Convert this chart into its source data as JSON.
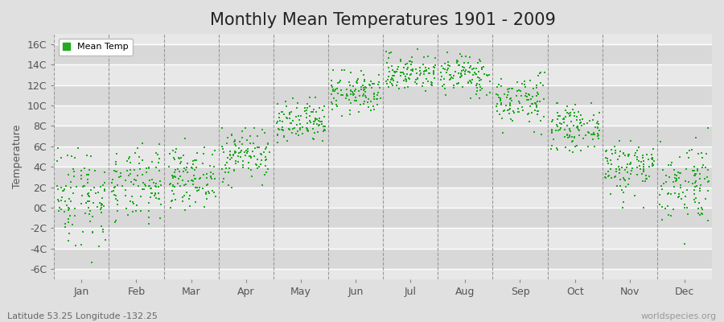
{
  "title": "Monthly Mean Temperatures 1901 - 2009",
  "ylabel": "Temperature",
  "subtitle": "Latitude 53.25 Longitude -132.25",
  "watermark": "worldspecies.org",
  "legend_label": "Mean Temp",
  "months": [
    "Jan",
    "Feb",
    "Mar",
    "Apr",
    "May",
    "Jun",
    "Jul",
    "Aug",
    "Sep",
    "Oct",
    "Nov",
    "Dec"
  ],
  "ylim": [
    -7,
    17
  ],
  "yticks": [
    -6,
    -4,
    -2,
    0,
    2,
    4,
    6,
    8,
    10,
    12,
    14,
    16
  ],
  "ytick_labels": [
    "-6C",
    "-4C",
    "-2C",
    "0C",
    "2C",
    "4C",
    "6C",
    "8C",
    "10C",
    "12C",
    "14C",
    "16C"
  ],
  "scatter_color": "#22aa22",
  "bg_color": "#e0e0e0",
  "plot_bg_color": "#e8e8e8",
  "band_light_color": "#d8d8d8",
  "band_dark_color": "#e8e8e8",
  "grid_color": "#ffffff",
  "dashed_line_color": "#999999",
  "title_fontsize": 15,
  "axis_label_fontsize": 9,
  "tick_fontsize": 9,
  "mean_temps": {
    "Jan": {
      "mean": 1.2,
      "std": 2.5,
      "min": -6.2,
      "max": 5.8
    },
    "Feb": {
      "mean": 2.0,
      "std": 1.8,
      "min": -4.5,
      "max": 6.8
    },
    "Mar": {
      "mean": 3.0,
      "std": 1.4,
      "min": -0.2,
      "max": 6.8
    },
    "Apr": {
      "mean": 5.2,
      "std": 1.3,
      "min": 2.0,
      "max": 7.8
    },
    "May": {
      "mean": 8.2,
      "std": 1.1,
      "min": 5.2,
      "max": 10.8
    },
    "Jun": {
      "mean": 11.2,
      "std": 1.0,
      "min": 8.0,
      "max": 13.5
    },
    "Jul": {
      "mean": 13.2,
      "std": 0.9,
      "min": 11.0,
      "max": 15.8
    },
    "Aug": {
      "mean": 13.0,
      "std": 1.0,
      "min": 10.2,
      "max": 15.2
    },
    "Sep": {
      "mean": 10.5,
      "std": 1.3,
      "min": 7.2,
      "max": 13.2
    },
    "Oct": {
      "mean": 7.8,
      "std": 1.0,
      "min": 5.2,
      "max": 10.2
    },
    "Nov": {
      "mean": 4.0,
      "std": 1.4,
      "min": 0.0,
      "max": 6.5
    },
    "Dec": {
      "mean": 2.5,
      "std": 2.0,
      "min": -3.5,
      "max": 8.2
    }
  },
  "n_years": 109,
  "random_seed": 42
}
